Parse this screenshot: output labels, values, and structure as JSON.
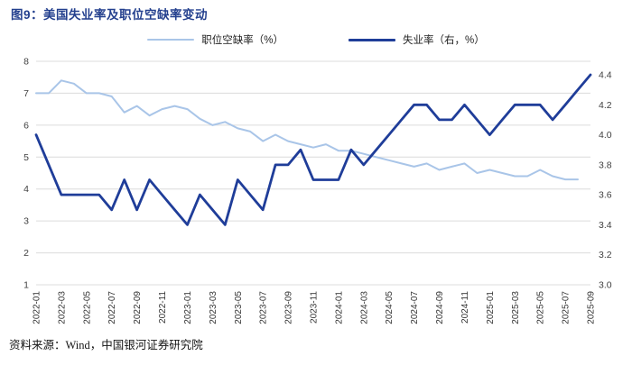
{
  "header": {
    "title": "图9：美国失业率及职位空缺率变动"
  },
  "legend": {
    "vacancy": "职位空缺率（%）",
    "unemployment": "失业率（右，%）"
  },
  "footer": {
    "source": "资料来源：Wind，中国银河证券研究院"
  },
  "colors": {
    "title": "#24408E",
    "vacancy_line": "#A9C5E8",
    "unemployment_line": "#1F3D99",
    "grid": "#DCDCDC",
    "axis_text": "#3F3F3F"
  },
  "chart_data": {
    "type": "line",
    "title": "美国失业率及职位空缺率变动",
    "n_points": 45,
    "grid": true,
    "legend_position": "top",
    "x_tick_labels": [
      "2022-01",
      "2022-03",
      "2022-05",
      "2022-07",
      "2022-09",
      "2022-11",
      "2023-01",
      "2023-03",
      "2023-05",
      "2023-07",
      "2023-09",
      "2023-11",
      "2024-01",
      "2024-03",
      "2024-05",
      "2024-07",
      "2024-09",
      "2024-11",
      "2025-01",
      "2025-03",
      "2025-05",
      "2025-07",
      "2025-09"
    ],
    "left_axis": {
      "min": 1,
      "max": 8,
      "ticks": [
        1,
        2,
        3,
        4,
        5,
        6,
        7,
        8
      ]
    },
    "right_axis": {
      "min": 3.0,
      "max": 4.4,
      "ticks": [
        3.0,
        3.2,
        3.4,
        3.6,
        3.8,
        4.0,
        4.2,
        4.4
      ]
    },
    "series": [
      {
        "name": "职位空缺率（%）",
        "axis": "left",
        "color": "#A9C5E8",
        "stroke_width": 2,
        "values": [
          7.0,
          7.0,
          7.4,
          7.3,
          7.0,
          7.0,
          6.9,
          6.4,
          6.6,
          6.3,
          6.5,
          6.6,
          6.5,
          6.2,
          6.0,
          6.1,
          5.9,
          5.8,
          5.5,
          5.7,
          5.5,
          5.4,
          5.3,
          5.4,
          5.2,
          5.2,
          5.1,
          5.0,
          4.9,
          4.8,
          4.7,
          4.8,
          4.6,
          4.7,
          4.8,
          4.5,
          4.6,
          4.5,
          4.4,
          4.4,
          4.6,
          4.4,
          4.3,
          4.3
        ]
      },
      {
        "name": "失业率（右，%）",
        "axis": "right",
        "color": "#1F3D99",
        "stroke_width": 2.8,
        "values": [
          4.0,
          3.8,
          3.6,
          3.6,
          3.6,
          3.6,
          3.5,
          3.7,
          3.5,
          3.7,
          3.6,
          3.5,
          3.4,
          3.6,
          3.5,
          3.4,
          3.7,
          3.6,
          3.5,
          3.8,
          3.8,
          3.9,
          3.7,
          3.7,
          3.7,
          3.9,
          3.8,
          3.9,
          4.0,
          4.1,
          4.2,
          4.2,
          4.1,
          4.1,
          4.2,
          4.1,
          4.0,
          4.1,
          4.2,
          4.2,
          4.2,
          4.1,
          4.2,
          4.3,
          4.4
        ]
      }
    ]
  }
}
